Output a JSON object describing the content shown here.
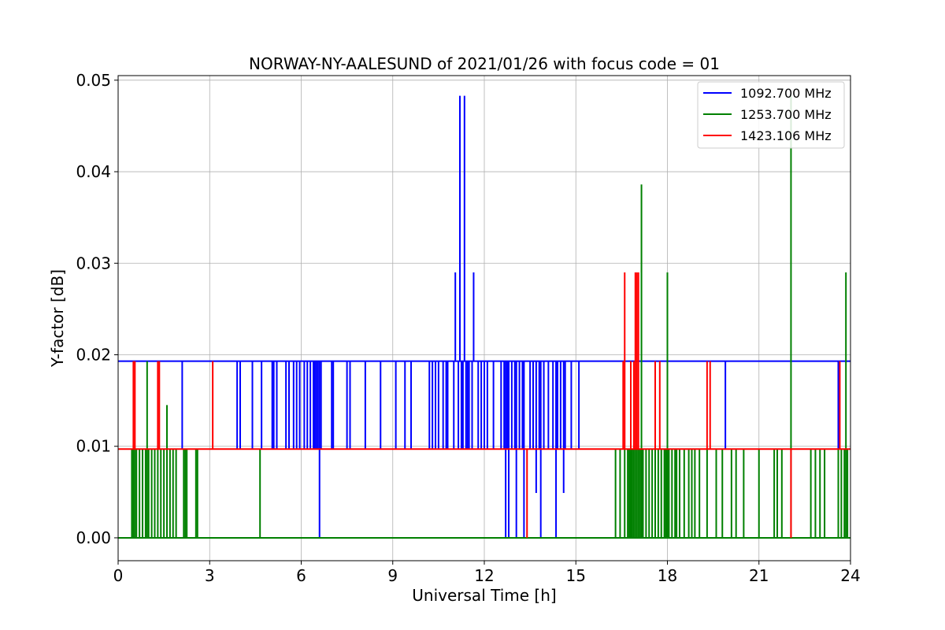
{
  "chart_data": {
    "type": "line",
    "title": "NORWAY-NY-AALESUND of 2021/01/26 with focus code = 01",
    "xlabel": "Universal Time [h]",
    "ylabel": "Y-factor [dB]",
    "xlim": [
      0,
      24
    ],
    "ylim": [
      -0.0025,
      0.0505
    ],
    "xticks": [
      0,
      3,
      6,
      9,
      12,
      15,
      18,
      21,
      24
    ],
    "xtick_labels": [
      "0",
      "3",
      "6",
      "9",
      "12",
      "15",
      "18",
      "21",
      "24"
    ],
    "yticks": [
      0.0,
      0.01,
      0.02,
      0.03,
      0.04,
      0.05
    ],
    "ytick_labels": [
      "0.00",
      "0.01",
      "0.02",
      "0.03",
      "0.04",
      "0.05"
    ],
    "grid": true,
    "legend_position": "top-right",
    "series": [
      {
        "name": "1092.700 MHz",
        "color": "#0000ff",
        "baseline": 0.0193,
        "spikes": [
          [
            2.1,
            0.0097
          ],
          [
            3.9,
            0.0097
          ],
          [
            4.0,
            0.0097
          ],
          [
            4.4,
            0.0097
          ],
          [
            4.7,
            0.0097
          ],
          [
            5.05,
            0.0097
          ],
          [
            5.1,
            0.0097
          ],
          [
            5.2,
            0.0097
          ],
          [
            5.5,
            0.0097
          ],
          [
            5.6,
            0.0097
          ],
          [
            5.75,
            0.0097
          ],
          [
            5.85,
            0.0097
          ],
          [
            5.95,
            0.0097
          ],
          [
            6.1,
            0.0097
          ],
          [
            6.2,
            0.0097
          ],
          [
            6.3,
            0.0097
          ],
          [
            6.4,
            0.0097
          ],
          [
            6.45,
            0.0097
          ],
          [
            6.5,
            0.0097
          ],
          [
            6.55,
            0.0097
          ],
          [
            6.6,
            0.0
          ],
          [
            6.65,
            0.0097
          ],
          [
            7.0,
            0.0097
          ],
          [
            7.05,
            0.0097
          ],
          [
            7.5,
            0.0097
          ],
          [
            7.6,
            0.0097
          ],
          [
            8.1,
            0.0097
          ],
          [
            8.6,
            0.0097
          ],
          [
            9.1,
            0.0097
          ],
          [
            9.4,
            0.0097
          ],
          [
            9.6,
            0.0097
          ],
          [
            10.2,
            0.0097
          ],
          [
            10.3,
            0.0097
          ],
          [
            10.4,
            0.0097
          ],
          [
            10.5,
            0.0097
          ],
          [
            10.65,
            0.0097
          ],
          [
            10.75,
            0.0097
          ],
          [
            10.8,
            0.0097
          ],
          [
            11.0,
            0.0097
          ],
          [
            11.05,
            0.029
          ],
          [
            11.15,
            0.0097
          ],
          [
            11.2,
            0.0483
          ],
          [
            11.25,
            0.0097
          ],
          [
            11.3,
            0.0097
          ],
          [
            11.35,
            0.0483
          ],
          [
            11.4,
            0.0097
          ],
          [
            11.45,
            0.0097
          ],
          [
            11.5,
            0.0097
          ],
          [
            11.6,
            0.0097
          ],
          [
            11.65,
            0.029
          ],
          [
            11.8,
            0.0097
          ],
          [
            11.9,
            0.0097
          ],
          [
            12.0,
            0.0097
          ],
          [
            12.1,
            0.0097
          ],
          [
            12.3,
            0.0097
          ],
          [
            12.55,
            0.0097
          ],
          [
            12.65,
            0.0097
          ],
          [
            12.7,
            0.0
          ],
          [
            12.75,
            0.0097
          ],
          [
            12.8,
            0.0
          ],
          [
            12.9,
            0.0097
          ],
          [
            13.0,
            0.0097
          ],
          [
            13.05,
            0.0
          ],
          [
            13.15,
            0.0097
          ],
          [
            13.25,
            0.0097
          ],
          [
            13.3,
            0.0
          ],
          [
            13.5,
            0.0097
          ],
          [
            13.6,
            0.0097
          ],
          [
            13.7,
            0.0049
          ],
          [
            13.8,
            0.0097
          ],
          [
            13.85,
            0.0
          ],
          [
            13.95,
            0.0097
          ],
          [
            14.1,
            0.0097
          ],
          [
            14.25,
            0.0097
          ],
          [
            14.35,
            0.0
          ],
          [
            14.4,
            0.0097
          ],
          [
            14.5,
            0.0097
          ],
          [
            14.6,
            0.0049
          ],
          [
            14.65,
            0.0097
          ],
          [
            14.85,
            0.0097
          ],
          [
            15.1,
            0.0097
          ],
          [
            19.9,
            0.0097
          ],
          [
            23.6,
            0.0097
          ]
        ]
      },
      {
        "name": "1253.700 MHz",
        "color": "#008000",
        "baseline": 0.0,
        "spikes": [
          [
            0.45,
            0.0097
          ],
          [
            0.5,
            0.0097
          ],
          [
            0.55,
            0.0097
          ],
          [
            0.6,
            0.0097
          ],
          [
            0.7,
            0.0097
          ],
          [
            0.8,
            0.0097
          ],
          [
            0.9,
            0.0097
          ],
          [
            0.95,
            0.0193
          ],
          [
            1.0,
            0.0097
          ],
          [
            1.1,
            0.0097
          ],
          [
            1.2,
            0.0097
          ],
          [
            1.3,
            0.0097
          ],
          [
            1.4,
            0.0097
          ],
          [
            1.5,
            0.0097
          ],
          [
            1.6,
            0.0145
          ],
          [
            1.7,
            0.0097
          ],
          [
            1.8,
            0.0097
          ],
          [
            1.9,
            0.0097
          ],
          [
            2.15,
            0.0097
          ],
          [
            2.2,
            0.0097
          ],
          [
            2.25,
            0.0097
          ],
          [
            2.55,
            0.0097
          ],
          [
            2.6,
            0.0097
          ],
          [
            4.65,
            0.0097
          ],
          [
            16.3,
            0.0097
          ],
          [
            16.45,
            0.0097
          ],
          [
            16.6,
            0.0097
          ],
          [
            16.7,
            0.0097
          ],
          [
            16.75,
            0.0097
          ],
          [
            16.8,
            0.0097
          ],
          [
            16.85,
            0.0097
          ],
          [
            16.9,
            0.0097
          ],
          [
            16.95,
            0.0097
          ],
          [
            17.0,
            0.0097
          ],
          [
            17.05,
            0.0097
          ],
          [
            17.1,
            0.0097
          ],
          [
            17.15,
            0.0386
          ],
          [
            17.2,
            0.0097
          ],
          [
            17.3,
            0.0097
          ],
          [
            17.4,
            0.0097
          ],
          [
            17.5,
            0.0097
          ],
          [
            17.6,
            0.0097
          ],
          [
            17.7,
            0.0097
          ],
          [
            17.8,
            0.0097
          ],
          [
            17.9,
            0.0097
          ],
          [
            17.95,
            0.0097
          ],
          [
            18.0,
            0.029
          ],
          [
            18.05,
            0.0097
          ],
          [
            18.15,
            0.0097
          ],
          [
            18.25,
            0.0097
          ],
          [
            18.3,
            0.0097
          ],
          [
            18.4,
            0.0097
          ],
          [
            18.55,
            0.0097
          ],
          [
            18.7,
            0.0097
          ],
          [
            18.8,
            0.0097
          ],
          [
            18.9,
            0.0097
          ],
          [
            19.05,
            0.0097
          ],
          [
            19.3,
            0.0097
          ],
          [
            19.6,
            0.0097
          ],
          [
            19.8,
            0.0097
          ],
          [
            20.1,
            0.0097
          ],
          [
            20.25,
            0.0097
          ],
          [
            20.5,
            0.0097
          ],
          [
            21.0,
            0.0097
          ],
          [
            21.5,
            0.0097
          ],
          [
            21.6,
            0.0097
          ],
          [
            21.75,
            0.0097
          ],
          [
            22.05,
            0.0483
          ],
          [
            22.7,
            0.0097
          ],
          [
            22.85,
            0.0097
          ],
          [
            23.0,
            0.0097
          ],
          [
            23.15,
            0.0097
          ],
          [
            23.6,
            0.0097
          ],
          [
            23.7,
            0.0097
          ],
          [
            23.8,
            0.0097
          ],
          [
            23.85,
            0.029
          ],
          [
            23.9,
            0.0097
          ]
        ]
      },
      {
        "name": "1423.106 MHz",
        "color": "#ff0000",
        "baseline": 0.0097,
        "spikes": [
          [
            0.5,
            0.0193
          ],
          [
            0.55,
            0.0193
          ],
          [
            1.3,
            0.0193
          ],
          [
            1.35,
            0.0193
          ],
          [
            3.1,
            0.0193
          ],
          [
            13.4,
            0.0
          ],
          [
            16.55,
            0.0193
          ],
          [
            16.6,
            0.029
          ],
          [
            16.8,
            0.0193
          ],
          [
            16.9,
            0.0193
          ],
          [
            16.95,
            0.029
          ],
          [
            17.0,
            0.029
          ],
          [
            17.05,
            0.029
          ],
          [
            17.6,
            0.0193
          ],
          [
            17.75,
            0.0193
          ],
          [
            19.3,
            0.0193
          ],
          [
            19.4,
            0.0193
          ],
          [
            22.05,
            0.0
          ],
          [
            23.65,
            0.0193
          ]
        ]
      }
    ]
  }
}
